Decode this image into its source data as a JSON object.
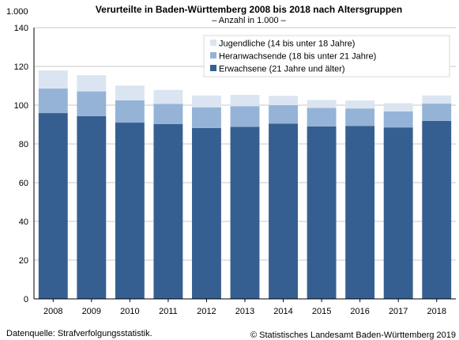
{
  "chart_data": {
    "type": "bar",
    "stacked": true,
    "title": "Verurteilte  in Baden-Württemberg 2008 bis 2018 nach Altersgruppen",
    "subtitle": "– Anzahl in 1.000 –",
    "y_unit_label": "1.000",
    "categories": [
      "2008",
      "2009",
      "2010",
      "2011",
      "2012",
      "2013",
      "2014",
      "2015",
      "2016",
      "2017",
      "2018"
    ],
    "series": [
      {
        "name": "Erwachsene (21 Jahre und älter)",
        "color": "#365f91",
        "values": [
          95.9,
          94.3,
          91.0,
          90.2,
          88.2,
          88.8,
          90.5,
          89.0,
          89.3,
          88.5,
          91.9
        ]
      },
      {
        "name": "Heranwachsende (18 bis unter 21 Jahre)",
        "color": "#95b3d7",
        "values": [
          12.7,
          12.8,
          11.5,
          10.5,
          10.7,
          10.7,
          9.5,
          9.6,
          9.0,
          8.3,
          8.9
        ]
      },
      {
        "name": "Jugendliche (14 bis unter 18 Jahre)",
        "color": "#dbe5f1",
        "values": [
          9.3,
          8.4,
          7.6,
          7.2,
          6.1,
          5.8,
          4.8,
          4.1,
          4.1,
          4.2,
          4.2
        ]
      }
    ],
    "ylim": [
      0,
      140
    ],
    "yticks": [
      0,
      20,
      40,
      60,
      80,
      100,
      120,
      140
    ],
    "grid": true,
    "legend_position": "top-right"
  },
  "footer": {
    "source": "Datenquelle: Strafverfolgungsstatistik.",
    "copyright": "© Statistisches Landesamt Baden-Württemberg 2019"
  }
}
